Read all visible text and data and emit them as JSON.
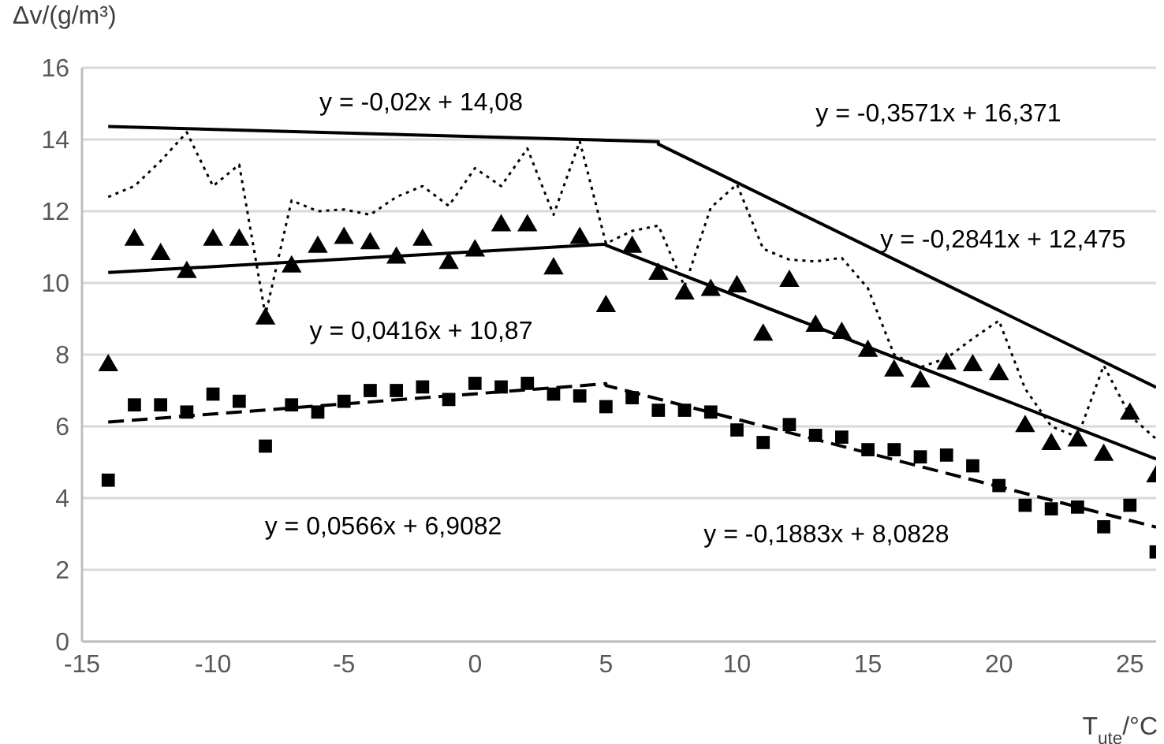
{
  "chart_data": {
    "type": "scatter",
    "ylabel": "Δv/(g/m³)",
    "xlabel": "T$_{ute}$/°C",
    "xlim": [
      -15,
      26
    ],
    "xticks": [
      -15,
      -10,
      -5,
      0,
      5,
      10,
      15,
      20,
      25
    ],
    "ylim": [
      0,
      16
    ],
    "yticks": [
      0,
      2,
      4,
      6,
      8,
      10,
      12,
      14,
      16
    ],
    "grid": "y",
    "legend": false,
    "x": [
      -14,
      -13,
      -12,
      -11,
      -10,
      -9,
      -8,
      -7,
      -6,
      -5,
      -4,
      -3,
      -2,
      -1,
      0,
      1,
      2,
      3,
      4,
      5,
      6,
      7,
      8,
      9,
      10,
      11,
      12,
      13,
      14,
      15,
      16,
      17,
      18,
      19,
      20,
      21,
      22,
      23,
      24,
      25,
      26
    ],
    "series": [
      {
        "marker": "triangle",
        "color": "#000000",
        "values": [
          7.7,
          11.2,
          10.8,
          10.3,
          11.2,
          11.2,
          9.0,
          10.45,
          11.0,
          11.25,
          11.1,
          10.7,
          11.2,
          10.55,
          10.9,
          11.6,
          11.6,
          10.4,
          11.25,
          9.35,
          11.0,
          10.25,
          9.7,
          9.8,
          9.9,
          8.55,
          10.05,
          8.8,
          8.6,
          8.1,
          7.55,
          7.25,
          7.75,
          7.7,
          7.45,
          6.0,
          5.5,
          5.6,
          5.2,
          6.35,
          4.6
        ]
      },
      {
        "marker": "square",
        "color": "#000000",
        "values": [
          4.5,
          6.6,
          6.6,
          6.4,
          6.9,
          6.7,
          5.45,
          6.6,
          6.4,
          6.7,
          7.0,
          7.0,
          7.1,
          6.75,
          7.2,
          7.1,
          7.2,
          6.9,
          6.85,
          6.55,
          6.8,
          6.45,
          6.45,
          6.4,
          5.9,
          5.55,
          6.05,
          5.75,
          5.7,
          5.35,
          5.35,
          5.15,
          5.2,
          4.9,
          4.35,
          3.8,
          3.7,
          3.75,
          3.2,
          3.8,
          2.5
        ]
      },
      {
        "type": "line",
        "line_style": "dotted",
        "color": "#000000",
        "values": [
          12.4,
          12.7,
          13.4,
          14.2,
          12.7,
          13.3,
          9.1,
          12.3,
          12.0,
          12.05,
          11.9,
          12.4,
          12.7,
          12.15,
          13.2,
          12.7,
          13.75,
          11.9,
          13.95,
          11.1,
          11.45,
          11.6,
          9.9,
          12.1,
          12.75,
          10.95,
          10.65,
          10.6,
          10.7,
          9.85,
          8.0,
          7.65,
          7.9,
          8.45,
          8.95,
          7.05,
          6.0,
          5.7,
          7.7,
          6.3,
          5.65
        ]
      },
      {
        "type": "line",
        "line_style": "solid",
        "color": "#000000",
        "x": [
          -14,
          7,
          7,
          26
        ],
        "values": [
          14.36,
          13.94,
          13.87,
          7.09
        ]
      },
      {
        "type": "line",
        "line_style": "solid",
        "color": "#000000",
        "x": [
          -14,
          5,
          5,
          26
        ],
        "values": [
          10.29,
          11.08,
          11.05,
          5.09
        ]
      },
      {
        "type": "line",
        "line_style": "dashed",
        "color": "#000000",
        "x": [
          -14,
          5,
          5,
          26
        ],
        "values": [
          6.12,
          7.19,
          7.14,
          3.19
        ]
      }
    ],
    "annotations": [
      "y = -0,02x + 14,08",
      "y = -0,3571x + 16,371",
      "y = -0,2841x + 12,475",
      "y = 0,0416x + 10,87",
      "y = 0,0566x + 6,9082",
      "y = -0,1883x + 8,0828"
    ]
  }
}
